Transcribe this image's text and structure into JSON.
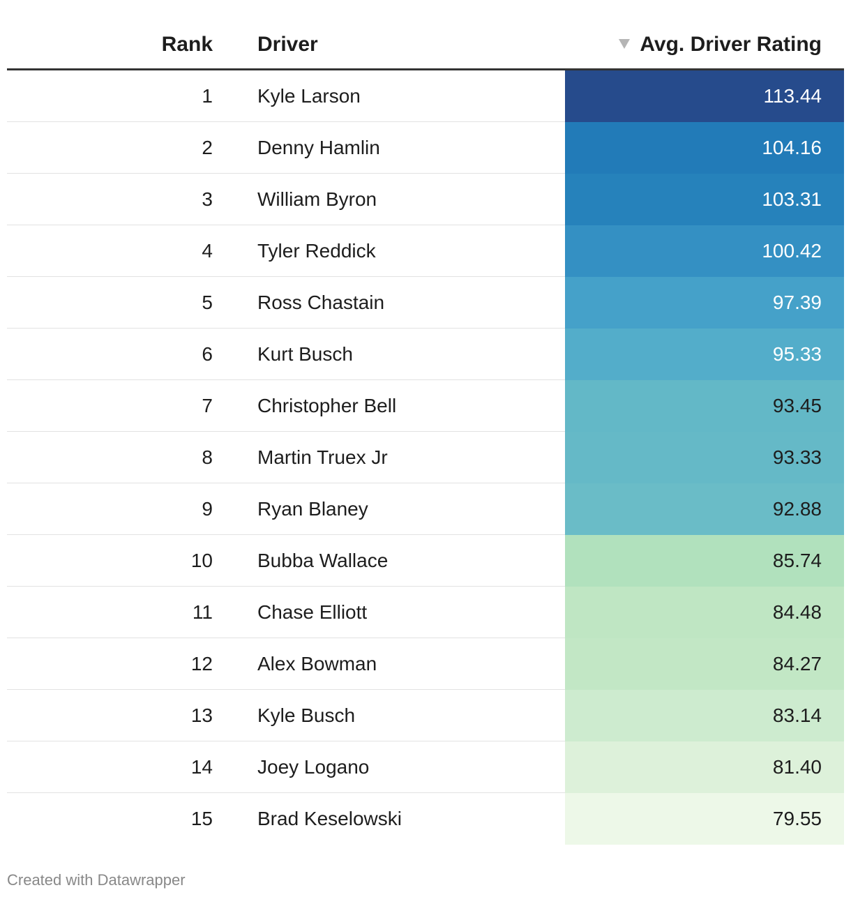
{
  "header": {
    "rank_label": "Rank",
    "driver_label": "Driver",
    "rating_label": "Avg. Driver Rating"
  },
  "footer": {
    "credit": "Created with Datawrapper"
  },
  "chart_data": {
    "type": "table",
    "columns": [
      "Rank",
      "Driver",
      "Avg. Driver Rating"
    ],
    "sorted_by": "Avg. Driver Rating",
    "sort_order": "descending",
    "rows": [
      {
        "rank": "1",
        "driver": "Kyle Larson",
        "rating": "113.44",
        "bg": "#264b8c",
        "fg": "#ffffff"
      },
      {
        "rank": "2",
        "driver": "Denny Hamlin",
        "rating": "104.16",
        "bg": "#227bb8",
        "fg": "#ffffff"
      },
      {
        "rank": "3",
        "driver": "William Byron",
        "rating": "103.31",
        "bg": "#2682bb",
        "fg": "#ffffff"
      },
      {
        "rank": "4",
        "driver": "Tyler Reddick",
        "rating": "100.42",
        "bg": "#3490c3",
        "fg": "#ffffff"
      },
      {
        "rank": "5",
        "driver": "Ross Chastain",
        "rating": "97.39",
        "bg": "#45a1c9",
        "fg": "#ffffff"
      },
      {
        "rank": "6",
        "driver": "Kurt Busch",
        "rating": "95.33",
        "bg": "#53adca",
        "fg": "#ffffff"
      },
      {
        "rank": "7",
        "driver": "Christopher Bell",
        "rating": "93.45",
        "bg": "#63b8c7",
        "fg": "#1d1d1d"
      },
      {
        "rank": "8",
        "driver": "Martin Truex Jr",
        "rating": "93.33",
        "bg": "#65b9c7",
        "fg": "#1d1d1d"
      },
      {
        "rank": "9",
        "driver": "Ryan Blaney",
        "rating": "92.88",
        "bg": "#6abcc7",
        "fg": "#1d1d1d"
      },
      {
        "rank": "10",
        "driver": "Bubba Wallace",
        "rating": "85.74",
        "bg": "#b1e1bd",
        "fg": "#1d1d1d"
      },
      {
        "rank": "11",
        "driver": "Chase Elliott",
        "rating": "84.48",
        "bg": "#bfe6c3",
        "fg": "#1d1d1d"
      },
      {
        "rank": "12",
        "driver": "Alex Bowman",
        "rating": "84.27",
        "bg": "#c2e7c5",
        "fg": "#1d1d1d"
      },
      {
        "rank": "13",
        "driver": "Kyle Busch",
        "rating": "83.14",
        "bg": "#cdebcf",
        "fg": "#1d1d1d"
      },
      {
        "rank": "14",
        "driver": "Joey Logano",
        "rating": "81.40",
        "bg": "#ddf1da",
        "fg": "#1d1d1d"
      },
      {
        "rank": "15",
        "driver": "Brad Keselowski",
        "rating": "79.55",
        "bg": "#edf8e8",
        "fg": "#1d1d1d"
      }
    ]
  }
}
